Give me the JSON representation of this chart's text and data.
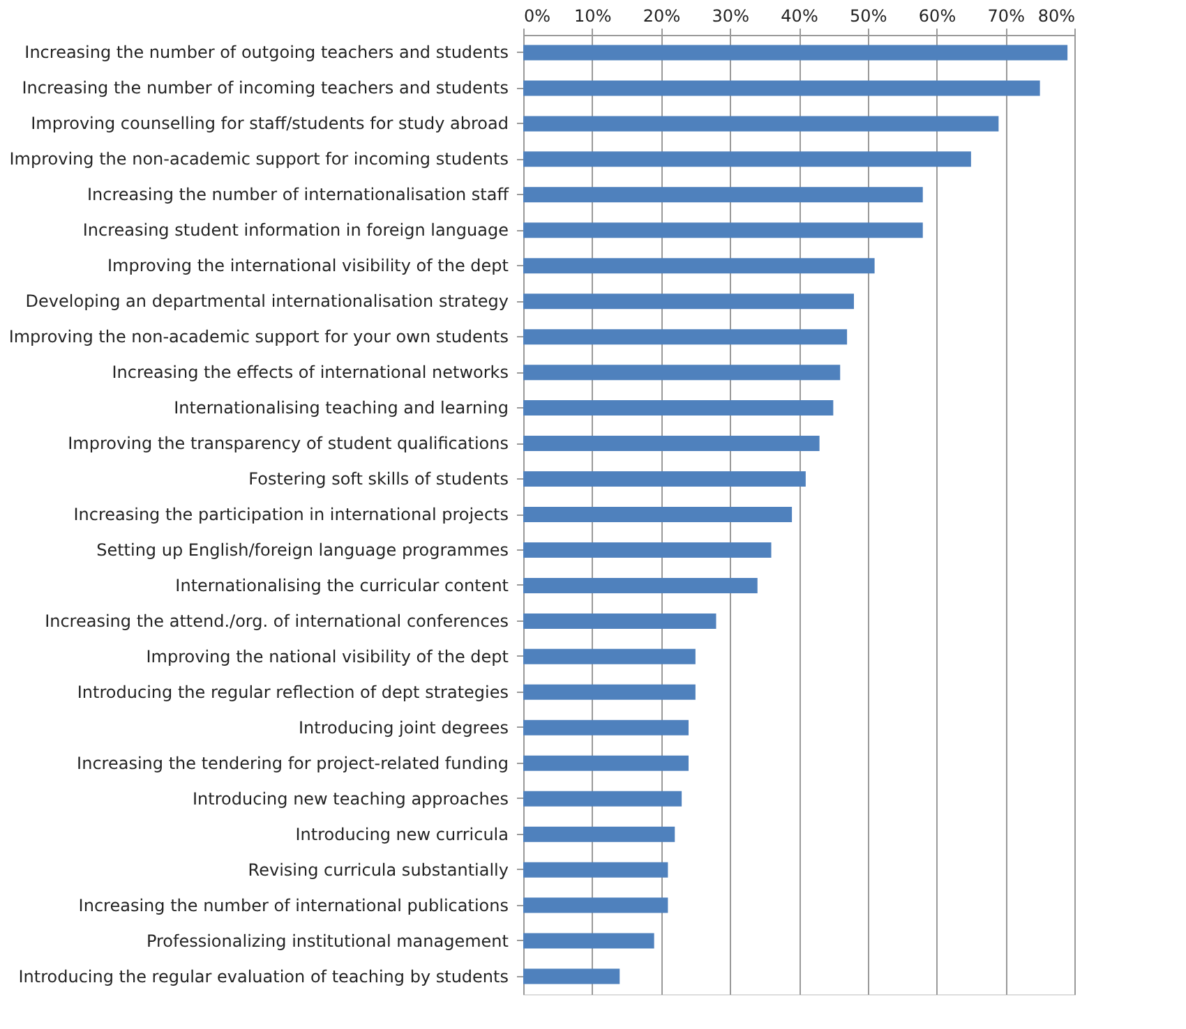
{
  "chart_data": {
    "type": "bar",
    "orientation": "horizontal",
    "color": "#4f81bd",
    "grid": "x",
    "categories": [
      "Increasing the number of outgoing teachers and students",
      "Increasing the number of incoming teachers and students",
      "Improving counselling for staff/students for study abroad",
      "Improving the non-academic support for incoming students",
      "Increasing the number of internationalisation staff",
      "Increasing student information in foreign language",
      "Improving the international visibility of the dept",
      "Developing an departmental internationalisation strategy",
      "Improving the non-academic support for your own students",
      "Increasing the effects of international networks",
      "Internationalising teaching and learning",
      "Improving the transparency of student qualifications",
      "Fostering soft skills of students",
      "Increasing the participation in international projects",
      "Setting up English/foreign language programmes",
      "Internationalising the curricular content",
      "Increasing the attend./org. of international conferences",
      "Improving the national visibility of the dept",
      "Introducing the regular reflection of  dept strategies",
      "Introducing joint degrees",
      "Increasing the tendering for project-related funding",
      "Introducing new teaching approaches",
      "Introducing new curricula",
      "Revising curricula substantially",
      "Increasing the number of international publications",
      "Professionalizing institutional management",
      "Introducing the regular evaluation of teaching by students"
    ],
    "values": [
      79,
      75,
      69,
      65,
      58,
      58,
      51,
      48,
      47,
      46,
      45,
      43,
      41,
      39,
      36,
      34,
      28,
      25,
      25,
      24,
      24,
      23,
      22,
      21,
      21,
      19,
      14
    ],
    "xlim": [
      0,
      80
    ],
    "xticks": [
      {
        "value": 0,
        "label": "0%"
      },
      {
        "value": 10,
        "label": "10%"
      },
      {
        "value": 20,
        "label": "20%"
      },
      {
        "value": 30,
        "label": "30%"
      },
      {
        "value": 40,
        "label": "40%"
      },
      {
        "value": 50,
        "label": "50%"
      },
      {
        "value": 60,
        "label": "60%"
      },
      {
        "value": 70,
        "label": "70%"
      },
      {
        "value": 80,
        "label": "80%"
      }
    ]
  }
}
